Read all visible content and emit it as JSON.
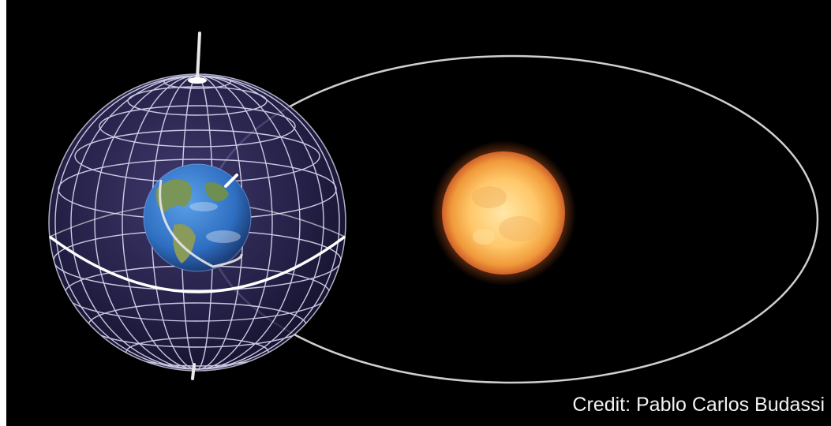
{
  "credit": "Credit: Pablo Carlos Budassi",
  "colors": {
    "background": "#000000",
    "orbit": "#cfcfcf",
    "sphere_fill": "#2a2552",
    "grid_lines": "#e8e8ff",
    "sun_core": "#ffd27a",
    "sun_edge": "#e07a2a",
    "earth_ocean": "#2f6fc2",
    "earth_land": "#6f8a4a",
    "credit_text": "#f2f2f2"
  },
  "objects": [
    "celestial-sphere",
    "earth",
    "sun",
    "orbit-ellipse",
    "celestial-axis",
    "celestial-equator"
  ]
}
